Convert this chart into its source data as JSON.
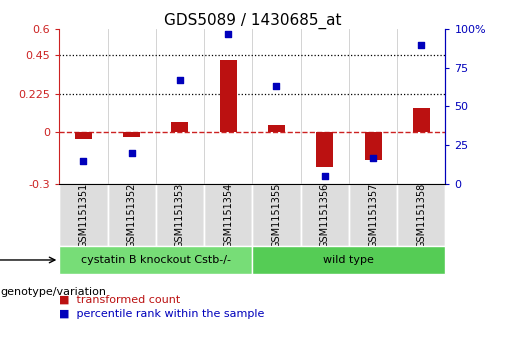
{
  "title": "GDS5089 / 1430685_at",
  "samples": [
    "GSM1151351",
    "GSM1151352",
    "GSM1151353",
    "GSM1151354",
    "GSM1151355",
    "GSM1151356",
    "GSM1151357",
    "GSM1151358"
  ],
  "transformed_count": [
    -0.04,
    -0.03,
    0.06,
    0.42,
    0.04,
    -0.2,
    -0.16,
    0.14
  ],
  "percentile_rank": [
    15,
    20,
    67,
    97,
    63,
    5,
    17,
    90
  ],
  "ylim_left": [
    -0.3,
    0.6
  ],
  "ylim_right": [
    0,
    100
  ],
  "yticks_left": [
    -0.3,
    0.0,
    0.225,
    0.45,
    0.6
  ],
  "yticks_right": [
    0,
    25,
    50,
    75,
    100
  ],
  "yticklabels_left": [
    "-0.3",
    "0",
    "0.225",
    "0.45",
    "0.6"
  ],
  "yticklabels_right": [
    "0",
    "25",
    "50",
    "75",
    "100%"
  ],
  "hlines": [
    0.225,
    0.45
  ],
  "zero_line": 0.0,
  "group1_label": "cystatin B knockout Cstb-/-",
  "group2_label": "wild type",
  "group1_count": 4,
  "group2_count": 4,
  "group_label_text": "genotype/variation",
  "legend_red_label": "transformed count",
  "legend_blue_label": "percentile rank within the sample",
  "bar_color": "#bb1111",
  "dot_color": "#0000bb",
  "group1_color": "#77dd77",
  "group2_color": "#55cc55",
  "zero_line_color": "#cc2222",
  "zero_line_style": "--",
  "bg_color": "#ffffff",
  "sample_box_color": "#dddddd",
  "tick_label_color_left": "#cc2222",
  "tick_label_color_right": "#0000bb",
  "title_fontsize": 11,
  "tick_fontsize": 8,
  "sample_label_fontsize": 7,
  "group_label_fontsize": 8,
  "legend_fontsize": 8,
  "bar_width": 0.35
}
